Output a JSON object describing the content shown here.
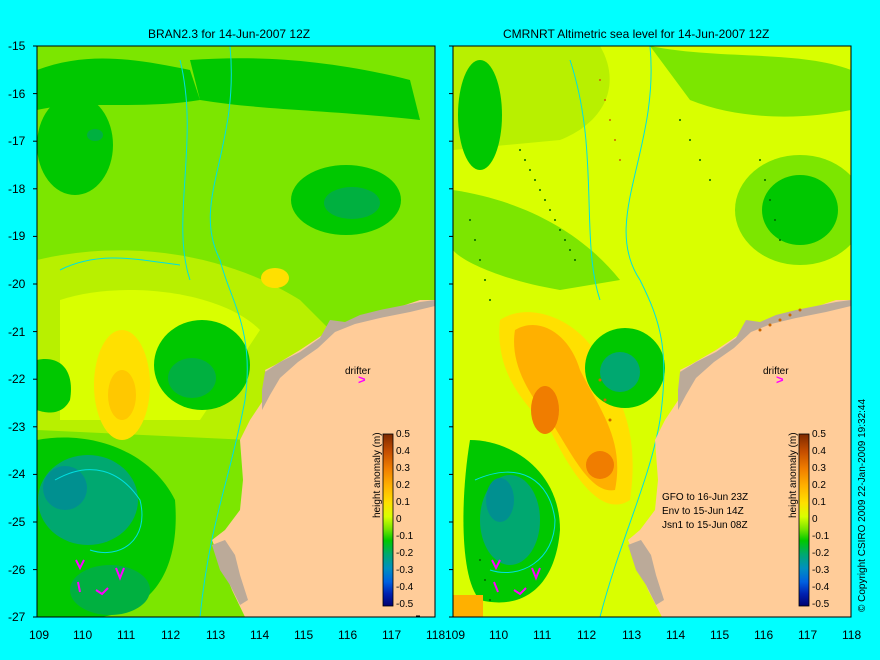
{
  "panels": [
    {
      "title": "BRAN2.3 for 14-Jun-2007 12Z"
    },
    {
      "title": "CMRNRT Altimetric sea level  for 14-Jun-2007 12Z"
    }
  ],
  "axes": {
    "lat_labels": [
      "-15",
      "-16",
      "-17",
      "-18",
      "-19",
      "-20",
      "-21",
      "-22",
      "-23",
      "-24",
      "-25",
      "-26",
      "-27"
    ],
    "lon_labels": [
      "109",
      "110",
      "111",
      "112",
      "113",
      "114",
      "115",
      "116",
      "117",
      "118"
    ]
  },
  "colorbar": {
    "label": "height anomaly (m)",
    "ticks": [
      "0.5",
      "0.4",
      "0.3",
      "0.2",
      "0.1",
      "0",
      "-0.1",
      "-0.2",
      "-0.3",
      "-0.4",
      "-0.5"
    ],
    "colors": [
      "#7E2A00",
      "#C44D00",
      "#F07D00",
      "#FFB000",
      "#FFE000",
      "#D9FF00",
      "#7CE600",
      "#00C800",
      "#00A870",
      "#0090C0",
      "#0060E0",
      "#0020B0",
      "#000070"
    ]
  },
  "drifter": {
    "label": "drifter",
    "marker": ">"
  },
  "track_notes": [
    "GFO to 16-Jun 23Z",
    "Env to 15-Jun 14Z",
    "Jsn1 to 15-Jun 08Z"
  ],
  "copyright": "© Copyright CSIRO 2009   22-Jan-2009 19:32:44",
  "colors": {
    "background": "#00FFFF",
    "land": "#FFCC99",
    "marker": "#FF00FF",
    "coast_contour": "#00E0E0"
  }
}
